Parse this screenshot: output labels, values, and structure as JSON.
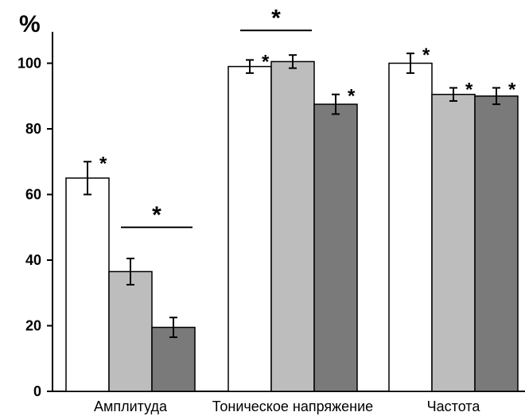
{
  "chart_data": {
    "type": "bar",
    "ylabel": "%",
    "ylim": [
      0,
      105
    ],
    "yticks": [
      0,
      20,
      40,
      60,
      80,
      100
    ],
    "grid": false,
    "categories": [
      "Амплитуда",
      "Тоническое напряжение",
      "Частота"
    ],
    "series": [
      {
        "values": [
          65,
          99,
          100
        ],
        "errors": [
          5,
          2,
          3
        ],
        "color": "#ffffff"
      },
      {
        "values": [
          36.5,
          100.5,
          90.5
        ],
        "errors": [
          4,
          2,
          2
        ],
        "color": "#bdbdbd"
      },
      {
        "values": [
          19.5,
          87.5,
          90
        ],
        "errors": [
          3,
          3,
          2.5
        ],
        "color": "#7a7a7a"
      }
    ],
    "bar_stars": [
      [
        true,
        true,
        true
      ],
      [
        false,
        false,
        true
      ],
      [
        false,
        true,
        true
      ]
    ],
    "significance_brackets": [
      {
        "category": 0,
        "from_series": 1,
        "to_series": 2,
        "level": 50,
        "label": "*"
      },
      {
        "category": 1,
        "from_series": 0,
        "to_series": 1,
        "level": 110,
        "label": "*"
      }
    ],
    "star_symbol": "*"
  }
}
